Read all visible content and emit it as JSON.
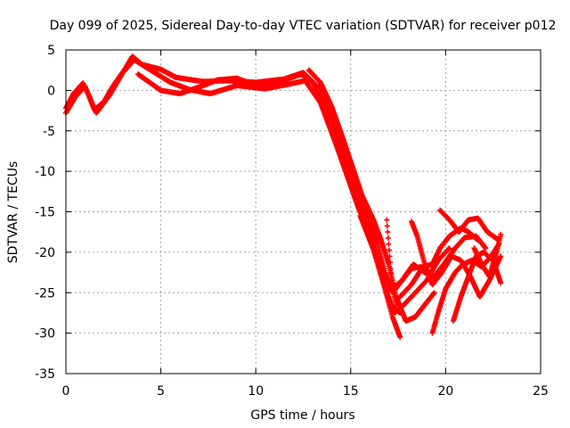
{
  "chart_data": {
    "type": "scatter",
    "title": "Day 099 of 2025, Sidereal Day-to-day VTEC variation (SDTVAR) for receiver p012",
    "xlabel": "GPS time / hours",
    "ylabel": "SDTVAR / TECUs",
    "xlim": [
      0,
      25
    ],
    "ylim": [
      -35,
      5
    ],
    "xticks": [
      0,
      5,
      10,
      15,
      20,
      25
    ],
    "yticks": [
      5,
      0,
      -5,
      -10,
      -15,
      -20,
      -25,
      -30,
      -35
    ],
    "grid": true,
    "marker": "+",
    "color": "#ff0000",
    "series": [
      {
        "values": [
          [
            0.0,
            -2.2
          ],
          [
            0.4,
            -0.4
          ],
          [
            0.9,
            0.9
          ],
          [
            1.2,
            -0.6
          ],
          [
            1.5,
            -2.4
          ],
          [
            2.0,
            -1.4
          ],
          [
            2.5,
            0.6
          ],
          [
            3.1,
            2.6
          ],
          [
            3.5,
            4.2
          ],
          [
            4.0,
            3.2
          ],
          [
            5.0,
            2.6
          ],
          [
            5.8,
            1.6
          ],
          [
            7.2,
            1.1
          ],
          [
            8.5,
            1.2
          ],
          [
            10.0,
            1.0
          ],
          [
            11.5,
            1.4
          ],
          [
            12.5,
            2.2
          ],
          [
            13.2,
            0.6
          ],
          [
            13.8,
            -2.0
          ],
          [
            14.5,
            -7.0
          ],
          [
            15.2,
            -12.5
          ],
          [
            15.8,
            -16.5
          ],
          [
            16.3,
            -20.5
          ],
          [
            16.8,
            -24.5
          ],
          [
            17.2,
            -28.0
          ],
          [
            17.6,
            -30.5
          ]
        ]
      },
      {
        "values": [
          [
            0.0,
            -2.8
          ],
          [
            0.5,
            -0.8
          ],
          [
            1.0,
            0.5
          ],
          [
            1.6,
            -2.8
          ],
          [
            2.3,
            -0.6
          ],
          [
            3.0,
            2.2
          ],
          [
            3.6,
            3.8
          ],
          [
            4.4,
            2.6
          ],
          [
            5.5,
            1.0
          ],
          [
            6.5,
            0.1
          ],
          [
            7.6,
            -0.4
          ],
          [
            9.0,
            0.6
          ],
          [
            10.5,
            0.2
          ],
          [
            11.8,
            0.8
          ],
          [
            12.6,
            1.2
          ],
          [
            13.4,
            -1.5
          ],
          [
            14.2,
            -6.5
          ],
          [
            14.8,
            -10.5
          ],
          [
            15.4,
            -14.5
          ],
          [
            16.0,
            -17.8
          ],
          [
            16.6,
            -22.5
          ],
          [
            17.1,
            -26.5
          ],
          [
            17.6,
            -27.5
          ]
        ]
      },
      {
        "values": [
          [
            3.8,
            2.0
          ],
          [
            5.0,
            0.0
          ],
          [
            6.0,
            -0.4
          ],
          [
            7.0,
            0.4
          ],
          [
            8.0,
            1.3
          ],
          [
            9.0,
            1.5
          ],
          [
            10.0,
            0.6
          ],
          [
            11.0,
            0.9
          ],
          [
            12.4,
            2.0
          ],
          [
            13.0,
            1.0
          ],
          [
            13.6,
            -1.5
          ],
          [
            14.2,
            -4.5
          ],
          [
            14.8,
            -8.5
          ],
          [
            15.3,
            -12.0
          ],
          [
            15.9,
            -15.8
          ],
          [
            16.4,
            -19.0
          ],
          [
            16.8,
            -22.5
          ],
          [
            17.2,
            -25.0
          ],
          [
            17.7,
            -23.5
          ],
          [
            18.3,
            -21.5
          ],
          [
            18.9,
            -22.5
          ],
          [
            19.4,
            -23.0
          ],
          [
            19.9,
            -21.5
          ],
          [
            20.5,
            -19.5
          ],
          [
            21.0,
            -18.2
          ],
          [
            21.6,
            -18.0
          ],
          [
            22.1,
            -19.5
          ]
        ]
      },
      {
        "values": [
          [
            12.8,
            2.5
          ],
          [
            13.4,
            1.0
          ],
          [
            14.0,
            -2.0
          ],
          [
            14.6,
            -6.0
          ],
          [
            15.1,
            -9.5
          ],
          [
            15.6,
            -13.0
          ],
          [
            16.2,
            -16.0
          ],
          [
            16.6,
            -18.5
          ],
          [
            17.0,
            -21.5
          ],
          [
            17.4,
            -25.5
          ],
          [
            17.9,
            -28.5
          ],
          [
            18.4,
            -28.0
          ],
          [
            18.9,
            -26.5
          ],
          [
            19.4,
            -25.0
          ]
        ]
      },
      {
        "values": [
          [
            15.5,
            -15.5
          ],
          [
            16.0,
            -18.5
          ],
          [
            16.5,
            -21.5
          ],
          [
            16.9,
            -25.0
          ],
          [
            17.3,
            -27.5
          ],
          [
            17.8,
            -26.5
          ],
          [
            18.4,
            -25.0
          ],
          [
            19.0,
            -23.5
          ],
          [
            19.6,
            -21.0
          ],
          [
            20.2,
            -19.5
          ]
        ]
      },
      {
        "values": [
          [
            16.9,
            -16.0
          ],
          [
            17.0,
            -19.0
          ],
          [
            17.1,
            -22.0
          ],
          [
            17.2,
            -24.5
          ],
          [
            17.4,
            -26.5
          ]
        ]
      },
      {
        "values": [
          [
            17.2,
            -24.5
          ],
          [
            17.7,
            -23.5
          ],
          [
            18.2,
            -22.0
          ],
          [
            18.7,
            -21.8
          ],
          [
            19.2,
            -22.6
          ],
          [
            19.6,
            -21.0
          ]
        ]
      },
      {
        "values": [
          [
            17.6,
            -25.5
          ],
          [
            18.2,
            -24.0
          ],
          [
            18.8,
            -21.8
          ],
          [
            19.3,
            -21.5
          ],
          [
            19.7,
            -19.5
          ],
          [
            20.2,
            -18.0
          ],
          [
            20.8,
            -17.0
          ],
          [
            21.2,
            -17.5
          ],
          [
            21.7,
            -18.5
          ]
        ]
      },
      {
        "values": [
          [
            18.2,
            -16.2
          ],
          [
            18.5,
            -18.0
          ],
          [
            18.9,
            -21.5
          ],
          [
            19.3,
            -24.0
          ],
          [
            19.8,
            -22.5
          ],
          [
            20.3,
            -20.5
          ],
          [
            20.8,
            -21.0
          ],
          [
            21.3,
            -23.0
          ],
          [
            21.8,
            -25.5
          ],
          [
            22.3,
            -23.5
          ],
          [
            22.9,
            -20.5
          ]
        ]
      },
      {
        "values": [
          [
            19.3,
            -30.0
          ],
          [
            19.6,
            -27.5
          ],
          [
            20.0,
            -24.5
          ],
          [
            20.5,
            -22.5
          ],
          [
            20.9,
            -21.5
          ],
          [
            21.4,
            -21.0
          ],
          [
            21.9,
            -21.8
          ],
          [
            22.4,
            -20.5
          ],
          [
            22.8,
            -19.0
          ]
        ]
      },
      {
        "values": [
          [
            19.7,
            -14.8
          ],
          [
            20.2,
            -16.0
          ],
          [
            20.7,
            -17.5
          ],
          [
            21.2,
            -16.0
          ],
          [
            21.7,
            -15.8
          ],
          [
            22.2,
            -17.5
          ],
          [
            22.8,
            -18.5
          ]
        ]
      },
      {
        "values": [
          [
            20.4,
            -28.5
          ],
          [
            20.8,
            -25.5
          ],
          [
            21.2,
            -23.0
          ],
          [
            21.6,
            -20.5
          ],
          [
            22.0,
            -20.0
          ],
          [
            22.5,
            -21.0
          ],
          [
            22.9,
            -23.8
          ]
        ]
      },
      {
        "values": [
          [
            21.5,
            -19.5
          ],
          [
            21.9,
            -21.5
          ],
          [
            22.3,
            -23.0
          ],
          [
            22.7,
            -19.8
          ],
          [
            22.9,
            -17.8
          ]
        ]
      }
    ]
  }
}
